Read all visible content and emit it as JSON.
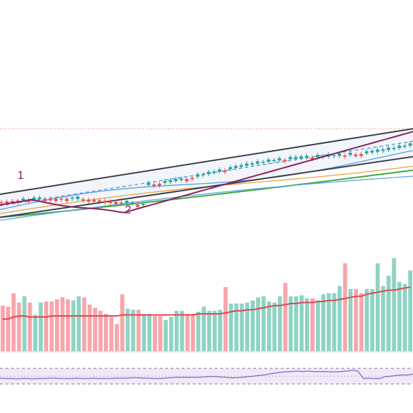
{
  "chart_data": {
    "type": "candlestick",
    "title": "",
    "price_pane": {
      "reference_level": 0.95,
      "channel": {
        "upper": [
          [
            0,
            0.27
          ],
          [
            100,
            0.95
          ]
        ],
        "lower": [
          [
            0,
            0.03
          ],
          [
            100,
            0.66
          ]
        ],
        "mid": [
          [
            0,
            0.15
          ],
          [
            100,
            0.82
          ]
        ]
      },
      "wave_labels": [
        {
          "text": "1",
          "x": 5,
          "y": 0.43
        },
        {
          "text": "2",
          "x": 31,
          "y": 0.07
        }
      ]
    },
    "volume_pane": {
      "values": [
        44,
        43,
        56,
        47,
        53,
        47,
        35,
        47,
        48,
        48,
        50,
        52,
        50,
        49,
        53,
        52,
        45,
        42,
        39,
        36,
        33,
        26,
        55,
        41,
        40,
        40,
        36,
        36,
        34,
        34,
        30,
        33,
        39,
        39,
        36,
        36,
        38,
        43,
        39,
        39,
        40,
        62,
        46,
        46,
        46,
        47,
        49,
        52,
        53,
        48,
        47,
        53,
        66,
        53,
        53,
        54,
        51,
        51,
        49,
        55,
        56,
        56,
        63,
        85,
        60,
        60,
        56,
        60,
        60,
        85,
        63,
        73,
        90,
        67,
        65,
        78
      ],
      "up": [
        0,
        0,
        0,
        0,
        1,
        0,
        1,
        1,
        0,
        0,
        0,
        0,
        0,
        1,
        1,
        0,
        0,
        0,
        0,
        0,
        0,
        0,
        0,
        1,
        1,
        0,
        1,
        1,
        0,
        0,
        1,
        1,
        1,
        1,
        0,
        0,
        1,
        1,
        1,
        1,
        1,
        0,
        1,
        1,
        1,
        1,
        1,
        1,
        1,
        1,
        1,
        1,
        0,
        1,
        1,
        1,
        1,
        0,
        1,
        1,
        1,
        1,
        1,
        0,
        1,
        0,
        0,
        1,
        1,
        1,
        1,
        1,
        1,
        1,
        1,
        1
      ],
      "ma": [
        31,
        31,
        33,
        34,
        34,
        33,
        33,
        33,
        33,
        34,
        34,
        34,
        34,
        34,
        34,
        34,
        34,
        34,
        34,
        34,
        34,
        34,
        35,
        35,
        35,
        35,
        35,
        35,
        35,
        35,
        35,
        35,
        35,
        35,
        35,
        35,
        36,
        36,
        36,
        36,
        36,
        37,
        38,
        39,
        39,
        40,
        40,
        41,
        42,
        43,
        44,
        44,
        45,
        46,
        46,
        47,
        47,
        47,
        48,
        48,
        49,
        49,
        50,
        51,
        52,
        53,
        53,
        55,
        56,
        57,
        58,
        59,
        59,
        60,
        61,
        62
      ]
    },
    "rsi_pane": {
      "values": [
        45,
        44,
        44,
        43,
        44,
        44,
        43,
        44,
        44,
        45,
        45,
        44,
        44,
        44,
        45,
        44,
        44,
        45,
        44,
        44,
        44,
        45,
        45,
        45,
        46,
        46,
        45,
        45,
        44,
        44,
        45,
        46,
        47,
        47,
        47,
        47,
        47,
        48,
        49,
        49,
        48,
        47,
        46,
        46,
        47,
        49,
        50,
        52,
        53,
        56,
        58,
        60,
        61,
        62,
        63,
        62,
        63,
        62,
        62,
        62,
        61,
        61,
        62,
        63,
        65,
        63,
        44,
        45,
        44,
        44,
        49,
        50,
        52,
        53,
        53,
        55
      ],
      "upper_band": 70,
      "lower_band": 30
    }
  }
}
